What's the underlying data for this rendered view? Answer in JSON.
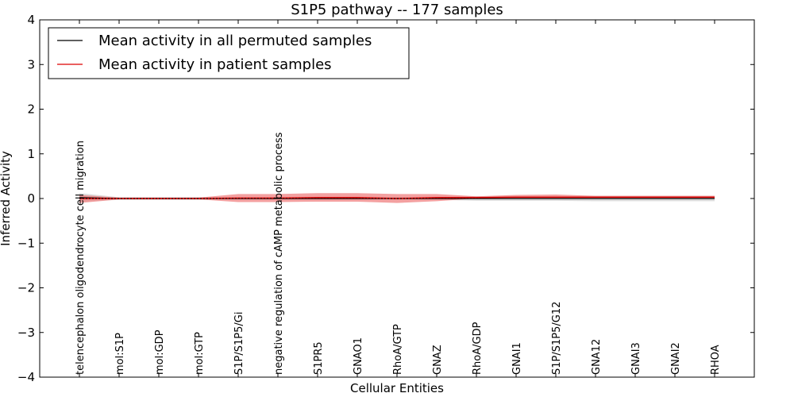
{
  "chart_data": {
    "type": "line",
    "title": "S1P5 pathway -- 177 samples",
    "xlabel": "Cellular Entities",
    "ylabel": "Inferred Activity",
    "ylim": [
      -4,
      4
    ],
    "yticks": [
      -4,
      -3,
      -2,
      -1,
      0,
      1,
      2,
      3,
      4
    ],
    "ytick_labels": [
      "−4",
      "−3",
      "−2",
      "−1",
      "0",
      "1",
      "2",
      "3",
      "4"
    ],
    "grid": false,
    "legend_position": "top-left",
    "categories": [
      "telencephalon oligodendrocyte cell migration",
      "mol:S1P",
      "mol:GDP",
      "mol:GTP",
      "S1P/S1P5/Gi",
      "negative regulation of cAMP metabolic process",
      "S1PR5",
      "GNAO1",
      "RhoA/GTP",
      "GNAZ",
      "RhoA/GDP",
      "GNAI1",
      "S1P/S1P5/G12",
      "GNA12",
      "GNAI3",
      "GNAI2",
      "RHOA"
    ],
    "series": [
      {
        "name": "Mean activity in all permuted samples",
        "color": "#000000",
        "band_color": "#bbbbbb",
        "values": [
          0.02,
          0.0,
          0.0,
          0.0,
          0.0,
          0.0,
          0.0,
          0.0,
          0.0,
          0.0,
          0.0,
          0.0,
          0.0,
          0.0,
          0.0,
          0.0,
          0.0
        ],
        "band_lower": [
          -0.07,
          -0.03,
          -0.03,
          -0.03,
          -0.03,
          -0.03,
          -0.03,
          -0.03,
          -0.03,
          -0.03,
          -0.05,
          -0.05,
          -0.05,
          -0.06,
          -0.06,
          -0.06,
          -0.06
        ],
        "band_upper": [
          0.12,
          0.03,
          0.03,
          0.03,
          0.03,
          0.03,
          0.03,
          0.03,
          0.03,
          0.03,
          0.05,
          0.05,
          0.05,
          0.06,
          0.06,
          0.06,
          0.06
        ]
      },
      {
        "name": "Mean activity in patient samples",
        "color": "#dd0000",
        "band_color": "#ee7777",
        "values": [
          0.0,
          0.0,
          0.0,
          0.0,
          0.01,
          0.01,
          0.02,
          0.02,
          0.0,
          0.02,
          0.02,
          0.03,
          0.03,
          0.03,
          0.03,
          0.03,
          0.03
        ],
        "band_lower": [
          -0.1,
          -0.02,
          -0.02,
          -0.02,
          -0.08,
          -0.08,
          -0.07,
          -0.07,
          -0.1,
          -0.06,
          0.0,
          0.0,
          0.0,
          0.0,
          0.0,
          0.0,
          0.0
        ],
        "band_upper": [
          0.08,
          0.02,
          0.02,
          0.02,
          0.1,
          0.1,
          0.12,
          0.12,
          0.1,
          0.1,
          0.05,
          0.08,
          0.09,
          0.06,
          0.06,
          0.06,
          0.06
        ]
      }
    ]
  }
}
